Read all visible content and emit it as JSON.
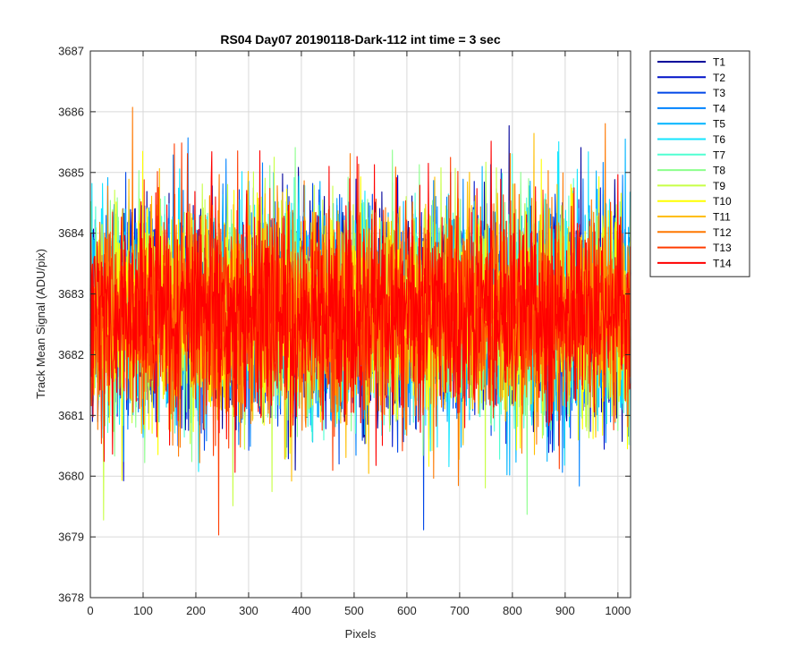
{
  "chart_data": {
    "type": "line",
    "title": "RS04 Day07 20190118-Dark-112 int time = 3 sec",
    "xlabel": "Pixels",
    "ylabel": "Track Mean Signal (ADU/pix)",
    "xlim": [
      0,
      1024
    ],
    "ylim": [
      3678,
      3687
    ],
    "xticks": [
      0,
      100,
      200,
      300,
      400,
      500,
      600,
      700,
      800,
      900,
      1000
    ],
    "yticks": [
      3678,
      3679,
      3680,
      3681,
      3682,
      3683,
      3684,
      3685,
      3686,
      3687
    ],
    "grid": true,
    "legend_position": "outside-top-right",
    "noise": {
      "mean": 3682.7,
      "std": 0.85,
      "points_per_series": 1024
    },
    "series": [
      {
        "name": "T1",
        "color": "#00009a"
      },
      {
        "name": "T2",
        "color": "#0012c8"
      },
      {
        "name": "T3",
        "color": "#0046e8"
      },
      {
        "name": "T4",
        "color": "#0082ff"
      },
      {
        "name": "T5",
        "color": "#00b4ff"
      },
      {
        "name": "T6",
        "color": "#14e6ff"
      },
      {
        "name": "T7",
        "color": "#50ffd2"
      },
      {
        "name": "T8",
        "color": "#8cff8c"
      },
      {
        "name": "T9",
        "color": "#c8ff46"
      },
      {
        "name": "T10",
        "color": "#ffff00"
      },
      {
        "name": "T11",
        "color": "#ffbe00"
      },
      {
        "name": "T12",
        "color": "#ff7800"
      },
      {
        "name": "T13",
        "color": "#ff3c00"
      },
      {
        "name": "T14",
        "color": "#ff0000"
      }
    ]
  }
}
